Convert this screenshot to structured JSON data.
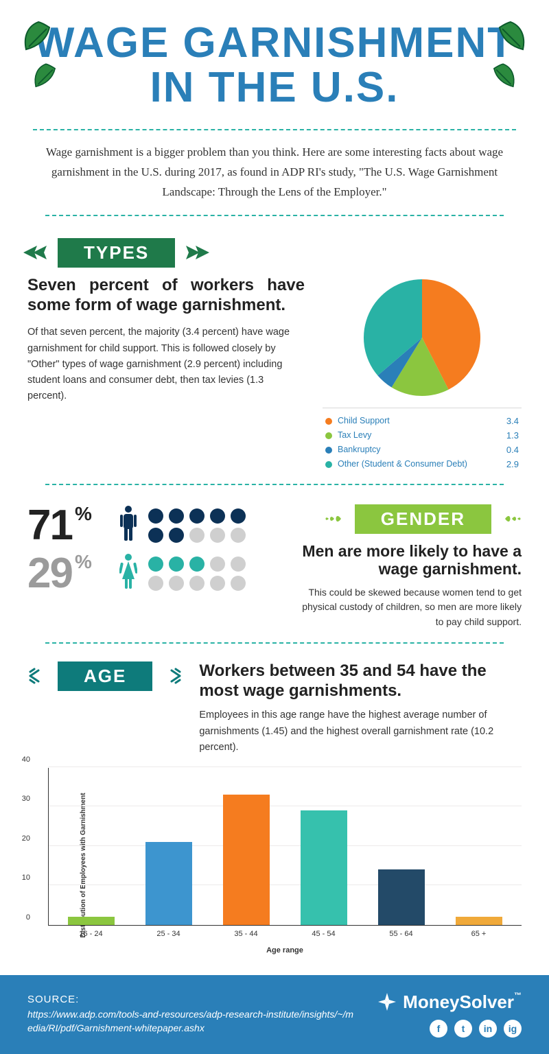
{
  "title": "WAGE GARNISHMENT IN THE U.S.",
  "intro": "Wage garnishment is a bigger problem than you think. Here are some interesting facts about wage garnishment in the U.S. during 2017, as found in ADP RI's study, \"The U.S. Wage Garnishment Landscape: Through the Lens of the Employer.\"",
  "colors": {
    "title": "#2a7fb8",
    "divider": "#29b2a5",
    "footer_bg": "#2a7fb8"
  },
  "types": {
    "banner_label": "TYPES",
    "banner_color": "#1f7a4a",
    "headline": "Seven percent of workers have some form of wage garnishment.",
    "body": "Of that seven percent, the majority (3.4 percent) have wage garnishment for child support. This is followed closely by \"Other\" types of wage garnishment (2.9 percent) including student loans and consumer debt, then tax levies (1.3 percent).",
    "pie": {
      "type": "pie",
      "slices": [
        {
          "label": "Child Support",
          "value": 3.4,
          "color": "#f57c1f"
        },
        {
          "label": "Tax Levy",
          "value": 1.3,
          "color": "#8bc63f"
        },
        {
          "label": "Bankruptcy",
          "value": 0.4,
          "color": "#2a7fb8"
        },
        {
          "label": "Other (Student & Consumer Debt)",
          "value": 2.9,
          "color": "#29b2a5"
        }
      ],
      "radius": 85
    }
  },
  "gender": {
    "banner_label": "GENDER",
    "banner_color": "#8bc63f",
    "headline": "Men are more likely to have a wage garnishment.",
    "body": "This could be skewed because women tend to get physical custody of children, so men are more likely to pay child support.",
    "male_pct": "71",
    "female_pct": "29",
    "pct_symbol": "%",
    "male_color": "#0c3156",
    "female_color": "#29b2a5",
    "inactive_color": "#cfcfcf",
    "male_filled_dots": 7,
    "female_filled_dots": 3,
    "total_dots": 10
  },
  "age": {
    "banner_label": "AGE",
    "banner_color": "#0e7b7b",
    "headline": "Workers between 35 and 54 have the most wage garnishments.",
    "body": "Employees in this age range have the highest average number of garnishments (1.45) and the highest overall garnishment rate (10.2 percent).",
    "chart": {
      "type": "bar",
      "y_axis_label": "Distribution of Employees with Garnishment",
      "x_axis_label": "Age range",
      "ylim": [
        0,
        40
      ],
      "ytick_step": 10,
      "bars": [
        {
          "label": "16 - 24",
          "value": 2,
          "color": "#8bc63f"
        },
        {
          "label": "25 - 34",
          "value": 21,
          "color": "#3d95cf"
        },
        {
          "label": "35 - 44",
          "value": 33,
          "color": "#f57c1f"
        },
        {
          "label": "45 - 54",
          "value": 29,
          "color": "#36c1ad"
        },
        {
          "label": "55 - 64",
          "value": 14,
          "color": "#234a68"
        },
        {
          "label": "65 +",
          "value": 2,
          "color": "#f0a93a"
        }
      ],
      "grid_color": "#eceaea",
      "axis_color": "#333333"
    }
  },
  "footer": {
    "source_label": "SOURCE:",
    "source_url": "https://www.adp.com/tools-and-resources/adp-research-institute/insights/~/media/RI/pdf/Garnishment-whitepaper.ashx",
    "brand": "MoneySolver",
    "brand_tm": "™",
    "social": [
      {
        "name": "facebook-icon",
        "glyph": "f"
      },
      {
        "name": "twitter-icon",
        "glyph": "t"
      },
      {
        "name": "linkedin-icon",
        "glyph": "in"
      },
      {
        "name": "instagram-icon",
        "glyph": "ig"
      }
    ]
  }
}
